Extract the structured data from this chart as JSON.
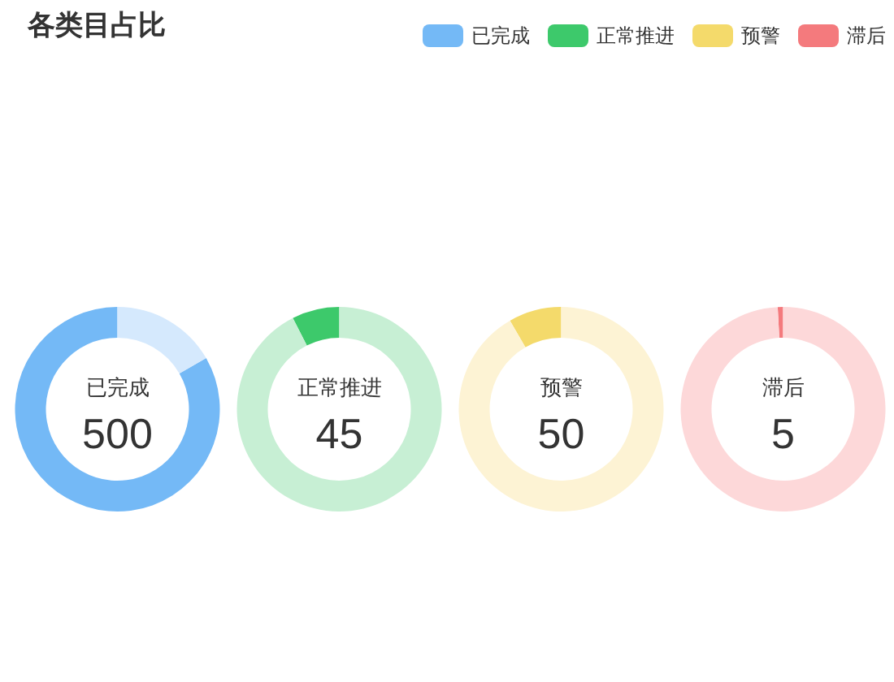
{
  "chart_data": [
    {
      "type": "donut",
      "title": "各类目占比",
      "categories": [
        "已完成",
        null
      ],
      "values": [
        500,
        100
      ],
      "colors": [
        "#74b9f6",
        "#d5e9fd"
      ],
      "value_labels": [
        "500",
        null
      ],
      "legend": "top right"
    },
    {
      "type": "donut",
      "categories": [
        "正常推进",
        null
      ],
      "values": [
        45,
        555
      ],
      "colors": [
        "#3dc96b",
        "#c7efd4"
      ],
      "value_labels": [
        "45",
        null
      ],
      "legend": "top right"
    },
    {
      "type": "donut",
      "categories": [
        "预警",
        null
      ],
      "values": [
        50,
        550
      ],
      "colors": [
        "#f4da6b",
        "#fdf3d4"
      ],
      "value_labels": [
        "50",
        null
      ],
      "legend": "top right"
    },
    {
      "type": "donut",
      "categories": [
        "滞后",
        null
      ],
      "values": [
        5,
        595
      ],
      "colors": [
        "#f47a7d",
        "#fdd8d9"
      ],
      "value_labels": [
        "5",
        null
      ],
      "legend": "top right"
    }
  ]
}
